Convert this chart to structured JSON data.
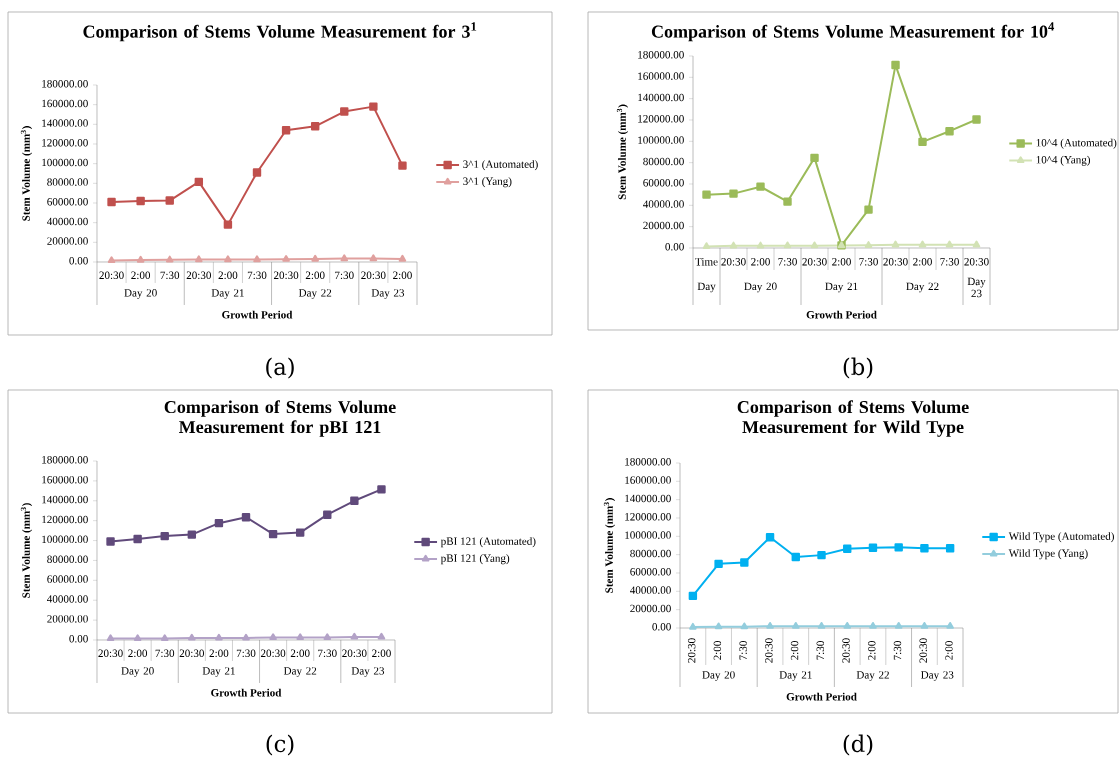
{
  "chart_data": [
    {
      "type": "line",
      "title": "Comparison of Stems Volume Measurement for 3$^{1}$",
      "xlabel": "Growth Period",
      "ylabel": "Stem Volume (mm$^{3}$)",
      "categories": [
        "20:30",
        "2:00",
        "7:30",
        "20:30",
        "2:00",
        "7:30",
        "20:30",
        "2:00",
        "7:30",
        "20:30",
        "2:00"
      ],
      "series": [
        {
          "name": "3^1 (Automated)",
          "color": "#c0504d",
          "marker": "square",
          "values": [
            61000,
            62000,
            62500,
            81500,
            38000,
            91000,
            134000,
            138000,
            153000,
            158000,
            98000
          ]
        },
        {
          "name": "3^1 (Yang)",
          "color": "#e0a09e",
          "marker": "triangle",
          "values": [
            1500,
            2000,
            2200,
            2500,
            2500,
            2500,
            2800,
            3000,
            3500,
            3500,
            3000
          ]
        }
      ],
      "ylim": [
        0,
        180000
      ],
      "yticks": [
        {
          "value": 0,
          "label": "0.00"
        },
        {
          "value": 20000,
          "label": "20000.00"
        },
        {
          "value": 40000,
          "label": "40000.00"
        },
        {
          "value": 60000,
          "label": "60000.00"
        },
        {
          "value": 80000,
          "label": "80000.00"
        },
        {
          "value": 100000,
          "label": "100000.00"
        },
        {
          "value": 120000,
          "label": "120000.00"
        },
        {
          "value": 140000,
          "label": "140000.00"
        },
        {
          "value": 160000,
          "label": "160000.00"
        },
        {
          "value": 180000,
          "label": "180000.00"
        }
      ],
      "legend": "right",
      "annotations": [
        "Day 20",
        "Day 21",
        "Day 22",
        "Day 23",
        "(a)"
      ]
    },
    {
      "type": "line",
      "title": "Comparison of Stems Volume Measurement for 10$^{4}$",
      "xlabel": "Growth Period",
      "ylabel": "Stem Volume (mm$^{3}$)",
      "categories": [
        "Time",
        "20:30",
        "2:00",
        "7:30",
        "20:30",
        "2:00",
        "7:30",
        "20:30",
        "2:00",
        "7:30",
        "20:30"
      ],
      "series": [
        {
          "name": "10^4 (Automated)",
          "color": "#9bbb59",
          "marker": "square",
          "values": [
            50000,
            51000,
            57500,
            43500,
            84500,
            2500,
            36000,
            171500,
            99500,
            109500,
            120500
          ]
        },
        {
          "name": "10^4 (Yang)",
          "color": "#d2e2b4",
          "marker": "triangle",
          "values": [
            1500,
            2000,
            2000,
            2200,
            2200,
            2300,
            2500,
            3000,
            3000,
            3000,
            3000
          ]
        }
      ],
      "ylim": [
        0,
        180000
      ],
      "yticks": [
        {
          "value": 0,
          "label": "0.00"
        },
        {
          "value": 20000,
          "label": "20000.00"
        },
        {
          "value": 40000,
          "label": "40000.00"
        },
        {
          "value": 60000,
          "label": "60000.00"
        },
        {
          "value": 80000,
          "label": "80000.00"
        },
        {
          "value": 100000,
          "label": "100000.00"
        },
        {
          "value": 120000,
          "label": "120000.00"
        },
        {
          "value": 140000,
          "label": "140000.00"
        },
        {
          "value": 160000,
          "label": "160000.00"
        },
        {
          "value": 180000,
          "label": "180000.00"
        }
      ],
      "legend": "right",
      "annotations": [
        "Day",
        "Day 20",
        "Day 21",
        "Day 22",
        "Day 23",
        "(b)"
      ]
    },
    {
      "type": "line",
      "title": "Comparison of Stems Volume Measurement for pBI 121",
      "xlabel": "Growth Period",
      "ylabel": "Stem Volume (mm$^{3}$)",
      "categories": [
        "20:30",
        "2:00",
        "7:30",
        "20:30",
        "2:00",
        "7:30",
        "20:30",
        "2:00",
        "7:30",
        "20:30",
        "2:00"
      ],
      "series": [
        {
          "name": "pBI 121 (Automated)",
          "color": "#604a7b",
          "marker": "square",
          "values": [
            99000,
            101500,
            104500,
            106000,
            117500,
            123500,
            106500,
            108000,
            126000,
            140000,
            151500
          ]
        },
        {
          "name": "pBI 121 (Yang)",
          "color": "#b3a2c7",
          "marker": "triangle",
          "values": [
            1500,
            1500,
            1500,
            2000,
            2000,
            2000,
            2500,
            2500,
            2500,
            3000,
            3000
          ]
        }
      ],
      "ylim": [
        0,
        180000
      ],
      "yticks": [
        {
          "value": 0,
          "label": "0.00"
        },
        {
          "value": 20000,
          "label": "20000.00"
        },
        {
          "value": 40000,
          "label": "40000.00"
        },
        {
          "value": 60000,
          "label": "60000.00"
        },
        {
          "value": 80000,
          "label": "80000.00"
        },
        {
          "value": 100000,
          "label": "100000.00"
        },
        {
          "value": 120000,
          "label": "120000.00"
        },
        {
          "value": 140000,
          "label": "140000.00"
        },
        {
          "value": 160000,
          "label": "160000.00"
        },
        {
          "value": 180000,
          "label": "180000.00"
        }
      ],
      "legend": "right",
      "annotations": [
        "Day 20",
        "Day 21",
        "Day 22",
        "Day 23",
        "(c)"
      ]
    },
    {
      "type": "line",
      "title": "Comparison of Stems Volume Measurement for Wild Type",
      "xlabel": "Growth Period",
      "ylabel": "Stem Volume (mm$^{3}$)",
      "categories": [
        "20:30",
        "2:00",
        "7:30",
        "20:30",
        "2:00",
        "7:30",
        "20:30",
        "2:00",
        "7:30",
        "20:30",
        "2:00"
      ],
      "series": [
        {
          "name": "Wild Type (Automated)",
          "color": "#00b0f0",
          "marker": "square",
          "values": [
            35000,
            70000,
            71500,
            99000,
            77500,
            79500,
            86500,
            87500,
            88000,
            87000,
            87000
          ]
        },
        {
          "name": "Wild Type (Yang)",
          "color": "#93cddd",
          "marker": "triangle",
          "values": [
            1000,
            1500,
            1500,
            2000,
            2000,
            2000,
            2000,
            2000,
            2000,
            2000,
            2000
          ]
        }
      ],
      "ylim": [
        0,
        180000
      ],
      "yticks": [
        {
          "value": 0,
          "label": "0.00"
        },
        {
          "value": 20000,
          "label": "20000.00"
        },
        {
          "value": 40000,
          "label": "40000.00"
        },
        {
          "value": 60000,
          "label": "60000.00"
        },
        {
          "value": 80000,
          "label": "80000.00"
        },
        {
          "value": 100000,
          "label": "100000.00"
        },
        {
          "value": 120000,
          "label": "120000.00"
        },
        {
          "value": 140000,
          "label": "140000.00"
        },
        {
          "value": 160000,
          "label": "160000.00"
        },
        {
          "value": 180000,
          "label": "180000.00"
        }
      ],
      "legend": "right",
      "annotations": [
        "Day 20",
        "Day 21",
        "Day 22",
        "Day 23",
        "(d)"
      ]
    }
  ]
}
